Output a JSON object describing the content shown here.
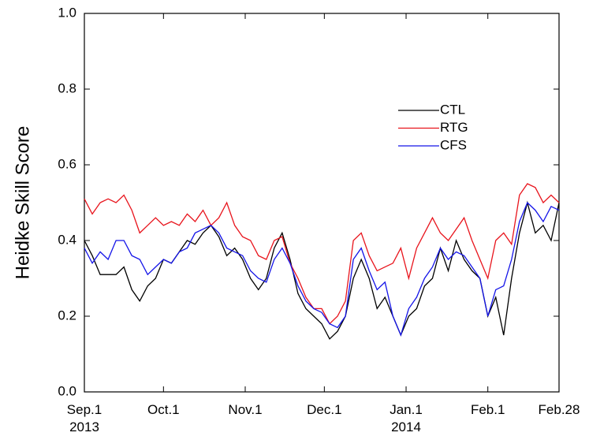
{
  "chart_data": {
    "type": "line",
    "ylabel": "Heidke Skill Score",
    "x": [
      0,
      3,
      6,
      9,
      12,
      15,
      18,
      21,
      24,
      27,
      30,
      33,
      36,
      39,
      42,
      45,
      48,
      51,
      54,
      57,
      60,
      63,
      66,
      69,
      72,
      75,
      78,
      81,
      84,
      87,
      90,
      93,
      96,
      99,
      102,
      105,
      108,
      111,
      114,
      117,
      120,
      123,
      126,
      129,
      132,
      135,
      138,
      141,
      144,
      147,
      150,
      153,
      156,
      159,
      162,
      165,
      168,
      171,
      174,
      177,
      180
    ],
    "series": [
      {
        "name": "CTL",
        "color": "#000000",
        "values": [
          0.4,
          0.36,
          0.31,
          0.31,
          0.31,
          0.33,
          0.27,
          0.24,
          0.28,
          0.3,
          0.35,
          0.34,
          0.37,
          0.4,
          0.39,
          0.42,
          0.44,
          0.41,
          0.36,
          0.38,
          0.35,
          0.3,
          0.27,
          0.3,
          0.38,
          0.42,
          0.35,
          0.26,
          0.22,
          0.2,
          0.18,
          0.14,
          0.16,
          0.2,
          0.3,
          0.35,
          0.3,
          0.22,
          0.25,
          0.2,
          0.15,
          0.2,
          0.22,
          0.28,
          0.3,
          0.38,
          0.32,
          0.4,
          0.35,
          0.32,
          0.3,
          0.2,
          0.25,
          0.15,
          0.3,
          0.42,
          0.5,
          0.42,
          0.44,
          0.4,
          0.5
        ]
      },
      {
        "name": "RTG",
        "color": "#e8141c",
        "values": [
          0.51,
          0.47,
          0.5,
          0.51,
          0.5,
          0.52,
          0.48,
          0.42,
          0.44,
          0.46,
          0.44,
          0.45,
          0.44,
          0.47,
          0.45,
          0.48,
          0.44,
          0.46,
          0.5,
          0.44,
          0.41,
          0.4,
          0.36,
          0.35,
          0.4,
          0.41,
          0.34,
          0.3,
          0.25,
          0.22,
          0.22,
          0.18,
          0.2,
          0.24,
          0.4,
          0.42,
          0.36,
          0.32,
          0.33,
          0.34,
          0.38,
          0.3,
          0.38,
          0.42,
          0.46,
          0.42,
          0.4,
          0.43,
          0.46,
          0.4,
          0.35,
          0.3,
          0.4,
          0.42,
          0.39,
          0.52,
          0.55,
          0.54,
          0.5,
          0.52,
          0.5
        ]
      },
      {
        "name": "CFS",
        "color": "#1414e8",
        "values": [
          0.38,
          0.34,
          0.37,
          0.35,
          0.4,
          0.4,
          0.36,
          0.35,
          0.31,
          0.33,
          0.35,
          0.34,
          0.37,
          0.38,
          0.42,
          0.43,
          0.44,
          0.42,
          0.38,
          0.37,
          0.36,
          0.32,
          0.3,
          0.29,
          0.35,
          0.38,
          0.34,
          0.28,
          0.24,
          0.22,
          0.21,
          0.18,
          0.17,
          0.2,
          0.35,
          0.38,
          0.32,
          0.27,
          0.29,
          0.2,
          0.15,
          0.22,
          0.25,
          0.3,
          0.33,
          0.38,
          0.35,
          0.37,
          0.36,
          0.33,
          0.3,
          0.2,
          0.27,
          0.28,
          0.35,
          0.45,
          0.5,
          0.48,
          0.45,
          0.49,
          0.48
        ]
      }
    ],
    "xlim": [
      0,
      180
    ],
    "xticks": [
      {
        "value": 0,
        "label": "Sep.1"
      },
      {
        "value": 30,
        "label": "Oct.1"
      },
      {
        "value": 61,
        "label": "Nov.1"
      },
      {
        "value": 91,
        "label": "Dec.1"
      },
      {
        "value": 122,
        "label": "Jan.1"
      },
      {
        "value": 153,
        "label": "Feb.1"
      },
      {
        "value": 180,
        "label": "Feb.28"
      }
    ],
    "x_sublabels": [
      {
        "value": 0,
        "label": "2013"
      },
      {
        "value": 122,
        "label": "2014"
      }
    ],
    "ylim": [
      0,
      1
    ],
    "yticks": [
      {
        "value": 0,
        "label": "0.0"
      },
      {
        "value": 0.2,
        "label": "0.2"
      },
      {
        "value": 0.4,
        "label": "0.4"
      },
      {
        "value": 0.6,
        "label": "0.6"
      },
      {
        "value": 0.8,
        "label": "0.8"
      },
      {
        "value": 1,
        "label": "1.0"
      }
    ],
    "legend": "upper right",
    "grid": false
  }
}
